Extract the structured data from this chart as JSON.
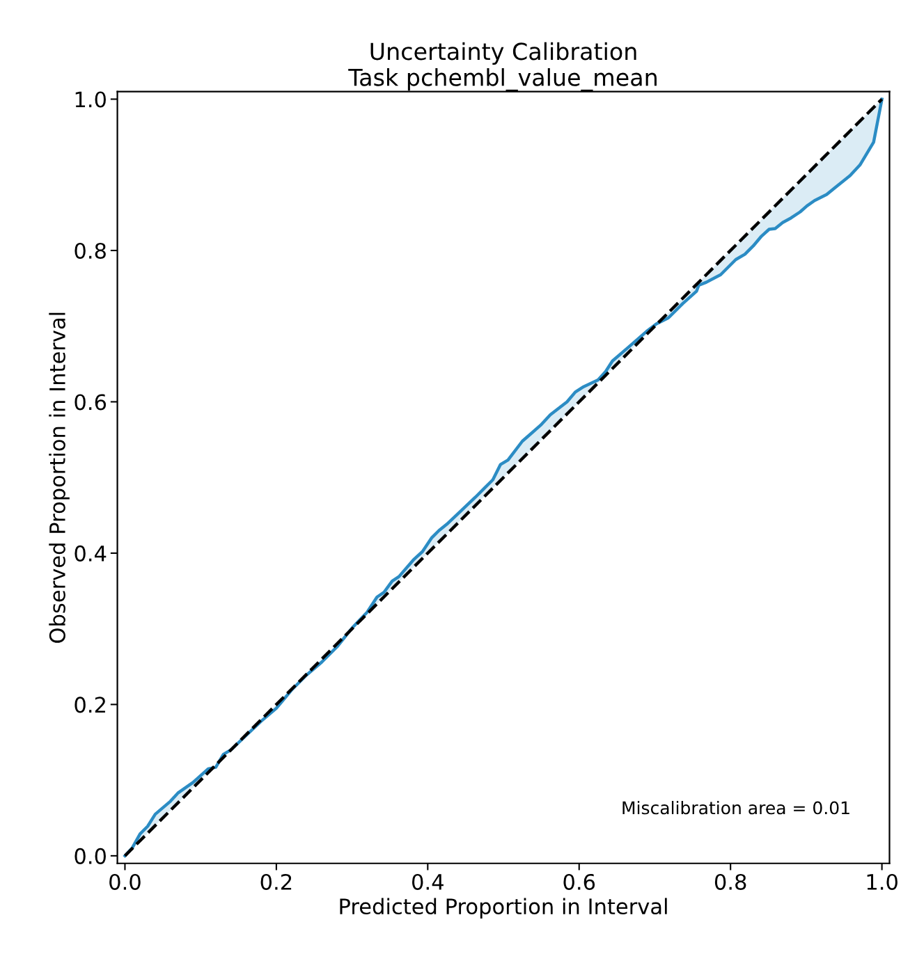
{
  "chart_data": {
    "type": "line",
    "title": "Uncertainty Calibration\nTask pchembl_value_mean",
    "xlabel": "Predicted Proportion in Interval",
    "ylabel": "Observed Proportion in Interval",
    "xlim": [
      -0.01,
      1.01
    ],
    "ylim": [
      -0.01,
      1.01
    ],
    "xticks": [
      {
        "value": 0,
        "label": "0.0"
      },
      {
        "value": 0.2,
        "label": "0.2"
      },
      {
        "value": 0.4,
        "label": "0.4"
      },
      {
        "value": 0.6,
        "label": "0.6"
      },
      {
        "value": 0.8,
        "label": "0.8"
      },
      {
        "value": 1,
        "label": "1.0"
      }
    ],
    "yticks": [
      {
        "value": 0,
        "label": "0.0"
      },
      {
        "value": 0.2,
        "label": "0.2"
      },
      {
        "value": 0.4,
        "label": "0.4"
      },
      {
        "value": 0.6,
        "label": "0.6"
      },
      {
        "value": 0.8,
        "label": "0.8"
      },
      {
        "value": 1,
        "label": "1.0"
      }
    ],
    "grid": false,
    "annotations": [
      "Miscalibration area = 0.01"
    ],
    "series": [
      {
        "color": "#2b8cc4",
        "x": [
          0,
          0.01,
          0.02,
          0.03,
          0.04,
          0.06,
          0.07,
          0.09,
          0.11,
          0.12,
          0.13,
          0.14,
          0.16,
          0.18,
          0.2,
          0.22,
          0.24,
          0.26,
          0.28,
          0.3,
          0.32,
          0.333,
          0.342,
          0.353,
          0.362,
          0.381,
          0.393,
          0.405,
          0.415,
          0.425,
          0.442,
          0.463,
          0.475,
          0.486,
          0.496,
          0.506,
          0.525,
          0.549,
          0.562,
          0.584,
          0.595,
          0.606,
          0.625,
          0.635,
          0.644,
          0.665,
          0.689,
          0.702,
          0.718,
          0.737,
          0.755,
          0.758,
          0.768,
          0.787,
          0.807,
          0.819,
          0.83,
          0.841,
          0.851,
          0.859,
          0.869,
          0.88,
          0.892,
          0.901,
          0.911,
          0.927,
          0.938,
          0.958,
          0.971,
          0.989,
          1.0
        ],
        "values": [
          0,
          0.011,
          0.029,
          0.039,
          0.055,
          0.072,
          0.083,
          0.097,
          0.115,
          0.117,
          0.134,
          0.14,
          0.159,
          0.178,
          0.195,
          0.219,
          0.239,
          0.256,
          0.276,
          0.301,
          0.322,
          0.342,
          0.348,
          0.363,
          0.369,
          0.391,
          0.402,
          0.42,
          0.43,
          0.438,
          0.454,
          0.474,
          0.486,
          0.497,
          0.517,
          0.523,
          0.548,
          0.569,
          0.583,
          0.6,
          0.613,
          0.62,
          0.629,
          0.64,
          0.654,
          0.672,
          0.693,
          0.703,
          0.711,
          0.73,
          0.746,
          0.754,
          0.758,
          0.768,
          0.788,
          0.795,
          0.806,
          0.819,
          0.828,
          0.829,
          0.837,
          0.843,
          0.851,
          0.859,
          0.866,
          0.874,
          0.883,
          0.899,
          0.913,
          0.943,
          1.0
        ],
        "lower": [
          0,
          0.011,
          0.029,
          0.039,
          0.055,
          0.072,
          0.083,
          0.097,
          0.115,
          0.117,
          0.134,
          0.14,
          0.159,
          0.178,
          0.195,
          0.219,
          0.239,
          0.256,
          0.276,
          0.301,
          0.322,
          0.342,
          0.348,
          0.363,
          0.369,
          0.391,
          0.402,
          0.42,
          0.43,
          0.438,
          0.454,
          0.474,
          0.486,
          0.497,
          0.517,
          0.523,
          0.548,
          0.569,
          0.583,
          0.6,
          0.613,
          0.62,
          0.629,
          0.64,
          0.654,
          0.672,
          0.693,
          0.703,
          0.711,
          0.73,
          0.746,
          0.754,
          0.758,
          0.768,
          0.788,
          0.795,
          0.806,
          0.819,
          0.828,
          0.829,
          0.837,
          0.843,
          0.851,
          0.859,
          0.866,
          0.874,
          0.883,
          0.899,
          0.913,
          0.943,
          1.0
        ],
        "upper": [
          0,
          0.01,
          0.02,
          0.03,
          0.04,
          0.06,
          0.07,
          0.09,
          0.11,
          0.12,
          0.13,
          0.14,
          0.16,
          0.18,
          0.2,
          0.22,
          0.24,
          0.26,
          0.28,
          0.3,
          0.32,
          0.333,
          0.342,
          0.353,
          0.362,
          0.381,
          0.393,
          0.405,
          0.415,
          0.425,
          0.442,
          0.463,
          0.475,
          0.486,
          0.496,
          0.506,
          0.525,
          0.549,
          0.562,
          0.584,
          0.595,
          0.606,
          0.625,
          0.635,
          0.644,
          0.665,
          0.689,
          0.702,
          0.718,
          0.737,
          0.755,
          0.758,
          0.768,
          0.787,
          0.807,
          0.819,
          0.83,
          0.841,
          0.851,
          0.859,
          0.869,
          0.88,
          0.892,
          0.901,
          0.911,
          0.927,
          0.938,
          0.958,
          0.971,
          0.989,
          1.0
        ]
      },
      {
        "color": "#000000",
        "line_style": "dashed",
        "x": [
          0,
          1
        ],
        "values": [
          0,
          1
        ]
      }
    ]
  }
}
